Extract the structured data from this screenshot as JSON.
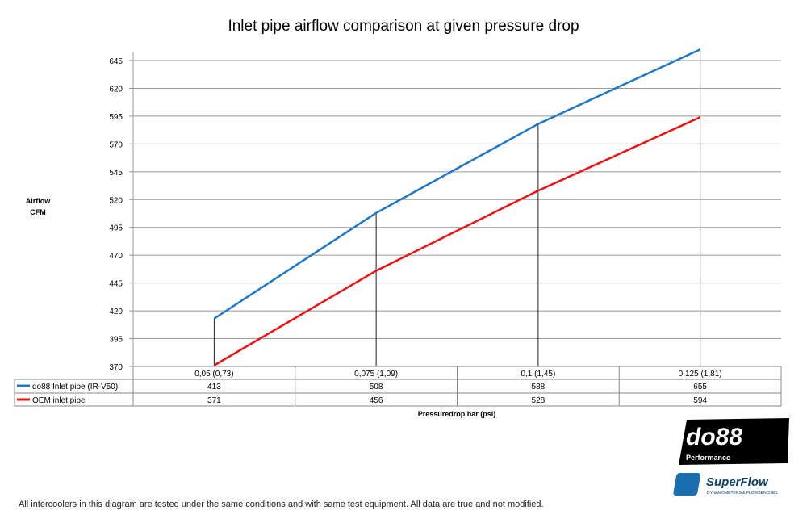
{
  "chart_data": {
    "type": "line",
    "title": "Inlet pipe airflow comparison at given pressure drop",
    "ylabel": [
      "Airflow",
      "CFM"
    ],
    "xlabel": "Pressuredrop bar (psi)",
    "categories": [
      "0,05 (0,73)",
      "0,075 (1,09)",
      "0,1 (1,45)",
      "0,125 (1,81)"
    ],
    "ylim": [
      370,
      645
    ],
    "yticks": [
      370,
      395,
      420,
      445,
      470,
      495,
      520,
      545,
      570,
      595,
      620,
      645
    ],
    "grid": true,
    "legend": "data-table",
    "series": [
      {
        "name": "do88 Inlet pipe (IR-V50)",
        "values": [
          413,
          508,
          588,
          655
        ],
        "color": "#1f77c8"
      },
      {
        "name": "OEM inlet pipe",
        "values": [
          371,
          456,
          528,
          594
        ],
        "color": "#ee1111"
      }
    ]
  },
  "logos": {
    "do88": "do88",
    "do88_sub": "Performance",
    "superflow": "SuperFlow",
    "superflow_sub": "DYNAMOMETERS & FLOWBENCHES"
  },
  "footer": "All intercoolers in this diagram are tested under the same conditions and with same test equipment. All data are true and not modified."
}
